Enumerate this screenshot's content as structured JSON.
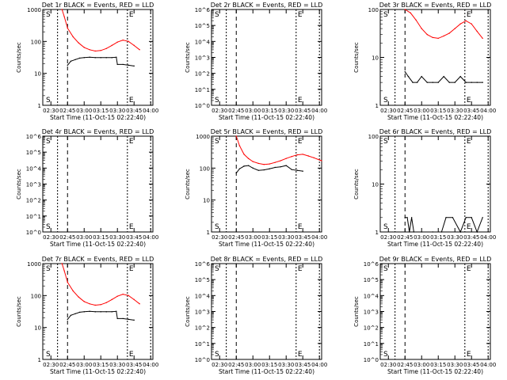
{
  "figure": {
    "xlabel": "Start Time (11-Oct-15 02:22:40)",
    "ylabel": "Counts/sec",
    "xticks": [
      "02:30",
      "02:45",
      "03:00",
      "03:15",
      "03:30",
      "03:45",
      "04:00"
    ],
    "colors": {
      "events": "#000000",
      "lld": "#ff0000",
      "axes": "#000000"
    }
  },
  "chart_data": [
    {
      "type": "line",
      "title": "Det 1r BLACK = Events, RED = LLD",
      "scale": "log",
      "ylim": [
        1,
        1000
      ],
      "yticks": [
        "1",
        "10",
        "100",
        "1000"
      ],
      "markers": [
        "S",
        "E"
      ],
      "series": [
        {
          "name": "LLD",
          "x": [
            "02:40",
            "02:42",
            "02:45",
            "02:50",
            "02:55",
            "03:00",
            "03:05",
            "03:10",
            "03:15",
            "03:20",
            "03:25",
            "03:30",
            "03:35",
            "03:40",
            "03:45",
            "03:50"
          ],
          "values": [
            1000,
            600,
            260,
            140,
            90,
            65,
            55,
            50,
            52,
            60,
            75,
            95,
            110,
            100,
            75,
            55
          ]
        },
        {
          "name": "Events",
          "x": [
            "02:45",
            "02:48",
            "02:52",
            "02:56",
            "03:00",
            "03:05",
            "03:10",
            "03:15",
            "03:20",
            "03:25",
            "03:29",
            "03:30",
            "03:35",
            "03:40",
            "03:45"
          ],
          "values": [
            18,
            24,
            27,
            30,
            31,
            32,
            31,
            31,
            31,
            31,
            32,
            19,
            19,
            18,
            17
          ]
        }
      ]
    },
    {
      "type": "line",
      "title": "Det 2r BLACK = Events, RED = LLD",
      "scale": "log",
      "ylim": [
        1,
        1000000
      ],
      "yticks": [
        "10^0",
        "10^1",
        "10^2",
        "10^3",
        "10^4",
        "10^5",
        "10^6"
      ],
      "markers": [
        "S",
        "E"
      ],
      "series": []
    },
    {
      "type": "line",
      "title": "Det 3r BLACK = Events, RED = LLD",
      "scale": "log",
      "ylim": [
        1,
        100
      ],
      "yticks": [
        "1",
        "10",
        "100"
      ],
      "markers": [
        "S",
        "E"
      ],
      "series": [
        {
          "name": "LLD",
          "x": [
            "02:45",
            "02:50",
            "02:55",
            "03:00",
            "03:05",
            "03:10",
            "03:15",
            "03:20",
            "03:25",
            "03:30",
            "03:35",
            "03:40",
            "03:45",
            "03:50",
            "03:55"
          ],
          "values": [
            100,
            85,
            60,
            40,
            30,
            26,
            25,
            28,
            32,
            40,
            50,
            58,
            50,
            35,
            25
          ]
        },
        {
          "name": "Events",
          "x": [
            "02:45",
            "02:48",
            "02:52",
            "02:56",
            "03:00",
            "03:05",
            "03:10",
            "03:15",
            "03:20",
            "03:25",
            "03:30",
            "03:35",
            "03:40",
            "03:45",
            "03:50",
            "03:55"
          ],
          "values": [
            5,
            4,
            3,
            3,
            4,
            3,
            3,
            3,
            4,
            3,
            3,
            4,
            3,
            3,
            3,
            3
          ]
        }
      ]
    },
    {
      "type": "line",
      "title": "Det 4r BLACK = Events, RED = LLD",
      "scale": "log",
      "ylim": [
        1,
        1000000
      ],
      "yticks": [
        "10^0",
        "10^1",
        "10^2",
        "10^3",
        "10^4",
        "10^5",
        "10^6"
      ],
      "markers": [
        "S",
        "E"
      ],
      "series": []
    },
    {
      "type": "line",
      "title": "Det 5r BLACK = Events, RED = LLD",
      "scale": "log",
      "ylim": [
        1,
        1000
      ],
      "yticks": [
        "1",
        "10",
        "100",
        "1000"
      ],
      "markers": [
        "S",
        "E"
      ],
      "series": [
        {
          "name": "LLD",
          "x": [
            "02:45",
            "02:48",
            "02:52",
            "02:56",
            "03:00",
            "03:05",
            "03:10",
            "03:15",
            "03:20",
            "03:25",
            "03:30",
            "03:35",
            "03:40",
            "03:45",
            "03:50",
            "03:55",
            "04:00",
            "04:02"
          ],
          "values": [
            1000,
            500,
            270,
            200,
            160,
            140,
            130,
            135,
            150,
            170,
            200,
            230,
            260,
            270,
            240,
            210,
            180,
            170
          ]
        },
        {
          "name": "Events",
          "x": [
            "02:45",
            "02:48",
            "02:52",
            "02:56",
            "03:00",
            "03:05",
            "03:10",
            "03:15",
            "03:20",
            "03:25",
            "03:30",
            "03:35",
            "03:40",
            "03:45"
          ],
          "values": [
            70,
            95,
            115,
            120,
            100,
            85,
            88,
            95,
            105,
            110,
            120,
            90,
            85,
            80
          ]
        }
      ]
    },
    {
      "type": "line",
      "title": "Det 6r BLACK = Events, RED = LLD",
      "scale": "log",
      "ylim": [
        1,
        100
      ],
      "yticks": [
        "1",
        "10",
        "100"
      ],
      "markers": [
        "S",
        "E"
      ],
      "series": [
        {
          "name": "Events",
          "x": [
            "02:45",
            "02:47",
            "02:49",
            "02:51",
            "02:53",
            "03:00",
            "03:10",
            "03:18",
            "03:22",
            "03:28",
            "03:35",
            "03:40",
            "03:45",
            "03:50",
            "03:55"
          ],
          "values": [
            2,
            2,
            1,
            2,
            1,
            1,
            1,
            1,
            2,
            2,
            1,
            2,
            2,
            1,
            2
          ]
        }
      ]
    },
    {
      "type": "line",
      "title": "Det 7r BLACK = Events, RED = LLD",
      "scale": "log",
      "ylim": [
        1,
        1000
      ],
      "yticks": [
        "1",
        "10",
        "100",
        "1000"
      ],
      "markers": [
        "S",
        "E"
      ],
      "series": [
        {
          "name": "LLD",
          "x": [
            "02:40",
            "02:42",
            "02:45",
            "02:50",
            "02:55",
            "03:00",
            "03:05",
            "03:10",
            "03:15",
            "03:20",
            "03:25",
            "03:30",
            "03:35",
            "03:40",
            "03:45",
            "03:50"
          ],
          "values": [
            1000,
            600,
            260,
            140,
            90,
            65,
            55,
            50,
            52,
            60,
            75,
            95,
            110,
            100,
            75,
            55
          ]
        },
        {
          "name": "Events",
          "x": [
            "02:45",
            "02:48",
            "02:52",
            "02:56",
            "03:00",
            "03:05",
            "03:10",
            "03:15",
            "03:20",
            "03:25",
            "03:29",
            "03:30",
            "03:35",
            "03:40",
            "03:45"
          ],
          "values": [
            18,
            24,
            27,
            30,
            31,
            32,
            31,
            31,
            31,
            31,
            32,
            19,
            19,
            18,
            17
          ]
        }
      ]
    },
    {
      "type": "line",
      "title": "Det 8r BLACK = Events, RED = LLD",
      "scale": "log",
      "ylim": [
        1,
        1000000
      ],
      "yticks": [
        "10^0",
        "10^1",
        "10^2",
        "10^3",
        "10^4",
        "10^5",
        "10^6"
      ],
      "markers": [
        "S",
        "E"
      ],
      "series": []
    },
    {
      "type": "line",
      "title": "Det 9r BLACK = Events, RED = LLD",
      "scale": "log",
      "ylim": [
        1,
        1000000
      ],
      "yticks": [
        "10^0",
        "10^1",
        "10^2",
        "10^3",
        "10^4",
        "10^5",
        "10^6"
      ],
      "markers": [
        "S",
        "E"
      ],
      "series": []
    }
  ]
}
